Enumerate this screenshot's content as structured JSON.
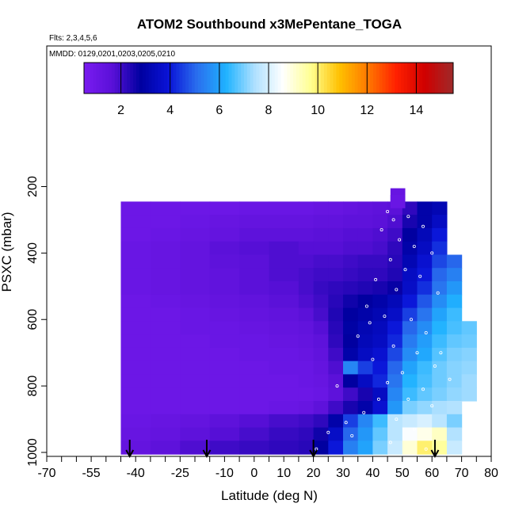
{
  "chart_data": {
    "type": "heatmap",
    "title": "ATOM2 Southbound x3MePentane_TOGA",
    "flights_note": "Flts: 2,3,4,5,6",
    "dates_note": "MMDD: 0129,0201,0203,0205,0210",
    "xlabel": "Latitude (deg N)",
    "ylabel": "PSXC (mbar)",
    "xlim": [
      -70,
      80
    ],
    "ylim": [
      1000,
      100
    ],
    "x_ticks": [
      -70,
      -55,
      -40,
      -25,
      -10,
      0,
      10,
      20,
      30,
      40,
      50,
      60,
      70,
      80
    ],
    "y_ticks": [
      200,
      400,
      600,
      800,
      1000
    ],
    "colorbar": {
      "range": [
        0.5,
        15.5
      ],
      "ticks": [
        2,
        4,
        6,
        8,
        10,
        12,
        14
      ],
      "colors": [
        "#7a1cf0",
        "#5a10d8",
        "#0000a0",
        "#0a14d8",
        "#2a70ee",
        "#1fb2ff",
        "#aee0ff",
        "#ffffff",
        "#ffff90",
        "#ffc000",
        "#ff7800",
        "#ff2000",
        "#d00000",
        "#9e2a2a"
      ]
    },
    "flight_markers_latitude": [
      -42,
      -16,
      20,
      61
    ],
    "pressure_levels": [
      265,
      305,
      345,
      385,
      425,
      465,
      505,
      545,
      585,
      625,
      665,
      705,
      745,
      785,
      825,
      865,
      905,
      945,
      985
    ],
    "latitude_bands": [
      -45,
      -35,
      -25,
      -15,
      -5,
      5,
      15,
      20,
      25,
      30,
      35,
      40,
      45,
      50,
      55,
      60,
      65,
      70
    ],
    "series": [
      {
        "pressure": 265,
        "values": [
          1.0,
          1.0,
          1.0,
          1.0,
          1.1,
          1.1,
          1.1,
          1.2,
          1.2,
          1.3,
          1.4,
          1.5,
          1.6,
          2.2,
          3.0,
          3.2,
          null,
          null
        ]
      },
      {
        "pressure": 305,
        "values": [
          1.0,
          1.0,
          1.1,
          1.2,
          1.3,
          1.3,
          1.3,
          1.4,
          1.4,
          1.5,
          1.5,
          1.6,
          1.8,
          2.5,
          3.0,
          3.5,
          null,
          null
        ]
      },
      {
        "pressure": 345,
        "values": [
          1.0,
          1.1,
          1.2,
          1.3,
          1.5,
          1.5,
          1.5,
          1.6,
          1.6,
          1.7,
          1.7,
          1.8,
          2.0,
          2.8,
          3.3,
          4.0,
          null,
          null
        ]
      },
      {
        "pressure": 385,
        "values": [
          1.1,
          1.2,
          1.3,
          1.6,
          1.7,
          1.8,
          1.7,
          1.7,
          1.7,
          1.8,
          1.8,
          1.9,
          2.2,
          3.0,
          3.5,
          4.3,
          null,
          null
        ]
      },
      {
        "pressure": 425,
        "values": [
          1.1,
          1.2,
          1.3,
          1.5,
          1.6,
          1.8,
          1.8,
          1.9,
          1.9,
          2.0,
          2.1,
          2.1,
          2.3,
          3.2,
          3.8,
          4.6,
          5.0,
          null
        ]
      },
      {
        "pressure": 465,
        "values": [
          1.1,
          1.2,
          1.3,
          1.4,
          1.6,
          1.8,
          1.9,
          2.0,
          2.0,
          2.1,
          2.2,
          2.2,
          2.4,
          3.5,
          4.0,
          5.0,
          5.4,
          null
        ]
      },
      {
        "pressure": 505,
        "values": [
          1.1,
          1.2,
          1.3,
          1.4,
          1.6,
          1.7,
          1.9,
          2.1,
          2.2,
          2.3,
          2.4,
          2.5,
          2.7,
          3.6,
          4.3,
          5.2,
          5.8,
          null
        ]
      },
      {
        "pressure": 545,
        "values": [
          1.0,
          1.1,
          1.2,
          1.3,
          1.4,
          1.6,
          1.8,
          2.0,
          2.3,
          2.6,
          2.8,
          3.0,
          3.3,
          4.0,
          4.8,
          5.6,
          6.2,
          null
        ]
      },
      {
        "pressure": 585,
        "values": [
          1.0,
          1.0,
          1.1,
          1.2,
          1.3,
          1.4,
          1.6,
          1.9,
          2.4,
          2.8,
          3.0,
          3.2,
          3.6,
          4.5,
          5.2,
          6.0,
          6.5,
          null
        ]
      },
      {
        "pressure": 625,
        "values": [
          1.0,
          1.0,
          1.1,
          1.1,
          1.2,
          1.3,
          1.4,
          1.7,
          2.3,
          2.9,
          3.2,
          3.4,
          4.0,
          5.0,
          5.6,
          6.3,
          6.6,
          6.8
        ]
      },
      {
        "pressure": 665,
        "values": [
          1.0,
          1.0,
          1.0,
          1.1,
          1.1,
          1.2,
          1.3,
          1.5,
          2.2,
          2.8,
          3.3,
          3.5,
          4.2,
          5.3,
          5.9,
          6.5,
          6.8,
          6.9
        ]
      },
      {
        "pressure": 705,
        "values": [
          1.0,
          1.0,
          1.0,
          1.0,
          1.1,
          1.1,
          1.2,
          1.4,
          2.0,
          3.0,
          3.5,
          3.8,
          4.6,
          5.6,
          6.1,
          6.7,
          7.0,
          7.1
        ]
      },
      {
        "pressure": 745,
        "values": [
          1.0,
          1.0,
          1.0,
          1.0,
          1.0,
          1.1,
          1.1,
          1.3,
          1.8,
          5.5,
          4.5,
          4.0,
          5.0,
          6.0,
          6.5,
          6.9,
          7.1,
          7.2
        ]
      },
      {
        "pressure": 785,
        "values": [
          1.0,
          1.0,
          1.0,
          1.0,
          1.0,
          1.0,
          1.1,
          1.2,
          1.6,
          2.8,
          3.5,
          4.2,
          5.2,
          6.3,
          6.6,
          6.9,
          7.1,
          7.3
        ]
      },
      {
        "pressure": 825,
        "values": [
          1.0,
          1.0,
          1.0,
          1.0,
          1.0,
          1.0,
          1.0,
          1.1,
          1.5,
          2.0,
          2.5,
          3.5,
          5.5,
          6.5,
          6.8,
          7.0,
          7.2,
          7.3
        ]
      },
      {
        "pressure": 865,
        "values": [
          1.0,
          1.0,
          1.0,
          1.0,
          1.0,
          1.1,
          1.2,
          1.5,
          2.0,
          2.5,
          3.0,
          3.8,
          5.8,
          7.0,
          7.2,
          7.4,
          7.5,
          null
        ]
      },
      {
        "pressure": 905,
        "values": [
          1.1,
          1.2,
          1.3,
          1.5,
          1.7,
          1.9,
          2.0,
          2.2,
          3.0,
          4.5,
          5.5,
          6.5,
          7.6,
          7.8,
          8.0,
          7.6,
          7.0,
          null
        ]
      },
      {
        "pressure": 945,
        "values": [
          1.2,
          1.3,
          1.5,
          1.7,
          1.9,
          2.1,
          2.2,
          2.6,
          3.6,
          5.0,
          5.8,
          6.8,
          7.6,
          8.5,
          8.8,
          9.2,
          7.5,
          null
        ]
      },
      {
        "pressure": 985,
        "values": [
          1.3,
          1.5,
          1.8,
          2.0,
          2.1,
          2.2,
          2.3,
          2.8,
          4.0,
          5.4,
          6.0,
          7.0,
          7.8,
          9.0,
          10.0,
          9.6,
          7.8,
          null
        ]
      }
    ],
    "sample_points": [
      [
        45,
        275
      ],
      [
        47,
        300
      ],
      [
        52,
        290
      ],
      [
        57,
        320
      ],
      [
        43,
        330
      ],
      [
        49,
        360
      ],
      [
        54,
        380
      ],
      [
        60,
        400
      ],
      [
        46,
        420
      ],
      [
        51,
        450
      ],
      [
        56,
        470
      ],
      [
        41,
        480
      ],
      [
        48,
        510
      ],
      [
        62,
        520
      ],
      [
        38,
        560
      ],
      [
        44,
        590
      ],
      [
        53,
        600
      ],
      [
        58,
        640
      ],
      [
        35,
        650
      ],
      [
        47,
        680
      ],
      [
        55,
        700
      ],
      [
        40,
        720
      ],
      [
        61,
        740
      ],
      [
        50,
        760
      ],
      [
        45,
        790
      ],
      [
        57,
        810
      ],
      [
        42,
        840
      ],
      [
        60,
        860
      ],
      [
        37,
        880
      ],
      [
        48,
        900
      ],
      [
        54,
        930
      ],
      [
        33,
        950
      ],
      [
        46,
        970
      ],
      [
        58,
        990
      ],
      [
        28,
        800
      ],
      [
        25,
        940
      ],
      [
        21,
        990
      ],
      [
        39,
        610
      ],
      [
        63,
        700
      ],
      [
        31,
        910
      ],
      [
        66,
        780
      ],
      [
        52,
        840
      ]
    ]
  }
}
